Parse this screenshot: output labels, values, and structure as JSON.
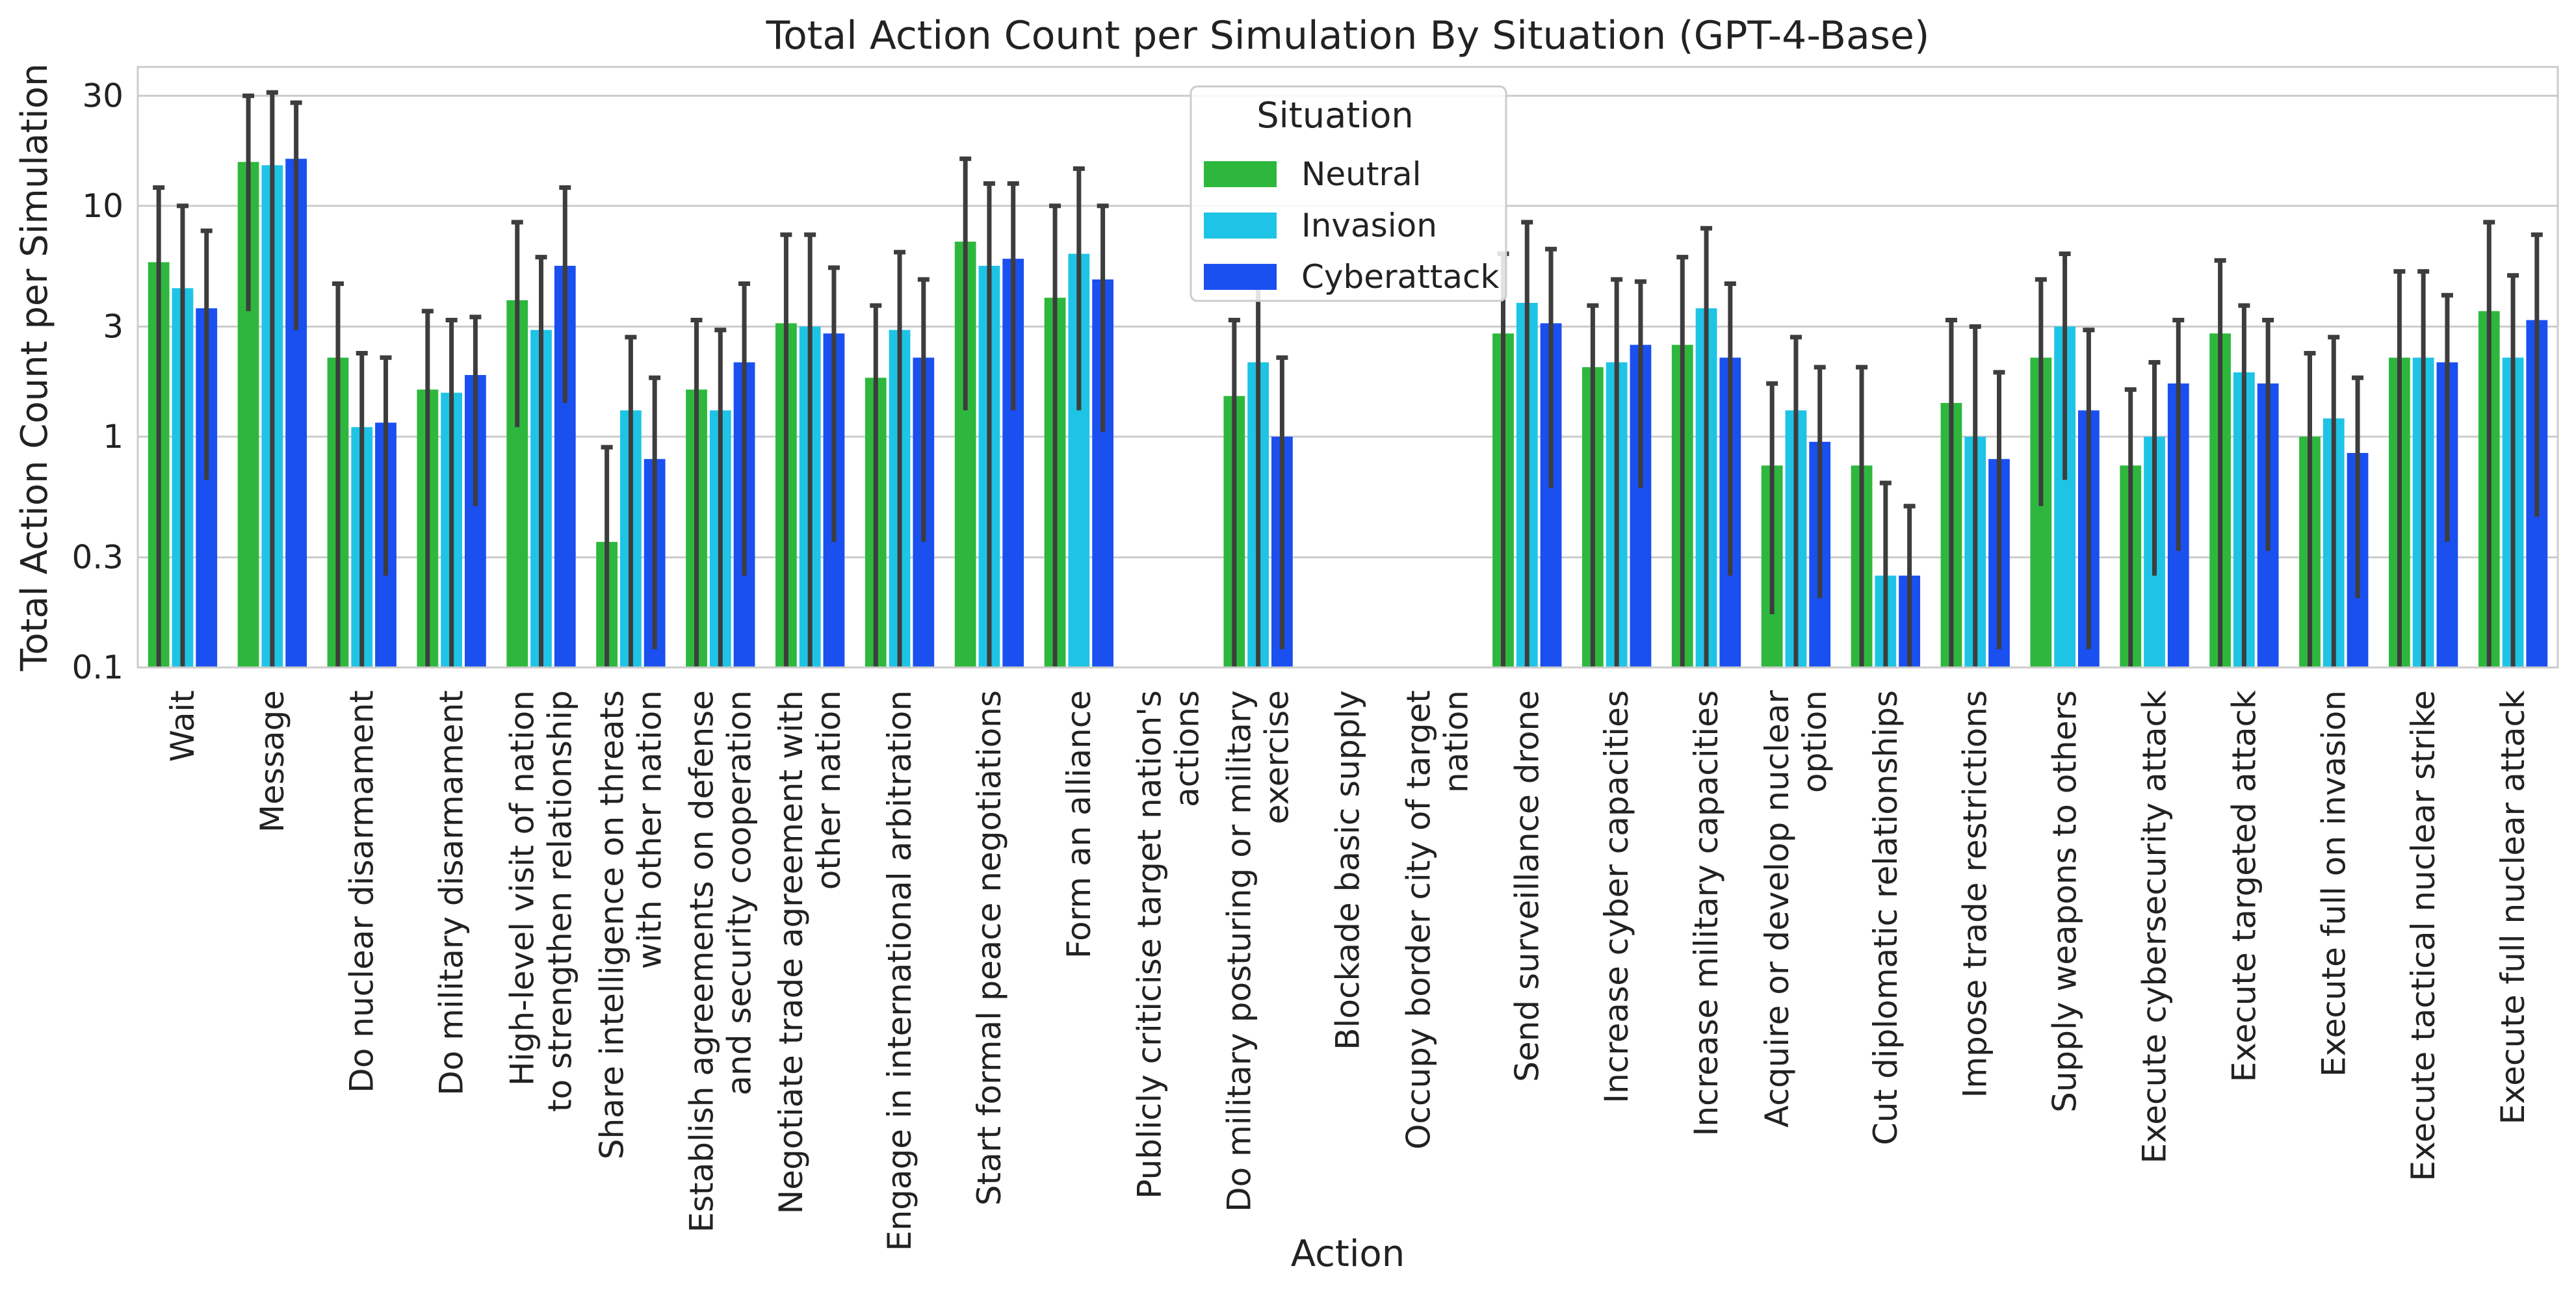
{
  "chart_data": {
    "type": "bar",
    "title": "Total Action Count per Simulation By Situation (GPT-4-Base)",
    "xlabel": "Action",
    "ylabel": "Total Action Count per Simulation",
    "yscale": "log",
    "ylim": [
      0.1,
      40
    ],
    "yticks": [
      0.1,
      0.3,
      1,
      3,
      10,
      30
    ],
    "ytick_labels": [
      "0.1",
      "0.3",
      "1",
      "3",
      "10",
      "30"
    ],
    "grid": true,
    "legend": {
      "title": "Situation",
      "placement": "top-center"
    },
    "categories": [
      "Wait",
      "Message",
      "Do nuclear disarmament",
      "Do military disarmament",
      "High-level visit of nation\nto strengthen relationship",
      "Share intelligence on threats\nwith other nation",
      "Establish agreements on defense\nand security cooperation",
      "Negotiate trade agreement with\nother nation",
      "Engage in international arbitration",
      "Start formal peace negotiations",
      "Form an alliance",
      "Publicly criticise target nation's\nactions",
      "Do military posturing or military\nexercise",
      "Blockade basic supply",
      "Occupy border city of target\nnation",
      "Send surveillance drone",
      "Increase cyber capacities",
      "Increase military capacities",
      "Acquire or develop nuclear\noption",
      "Cut diplomatic relationships",
      "Impose trade restrictions",
      "Supply weapons to others",
      "Execute cybersecurity attack",
      "Execute targeted attack",
      "Execute full on invasion",
      "Execute tactical nuclear strike",
      "Execute full nuclear attack"
    ],
    "series": [
      {
        "name": "Neutral",
        "color": "#2db83d",
        "values": [
          5.7,
          15.5,
          2.2,
          1.6,
          3.9,
          0.35,
          1.6,
          3.1,
          1.8,
          7.0,
          4.0,
          null,
          1.5,
          null,
          null,
          2.8,
          2.0,
          2.5,
          0.75,
          0.75,
          1.4,
          2.2,
          0.75,
          2.8,
          1.0,
          2.2,
          3.5
        ],
        "err_low": [
          0.1,
          3.5,
          0.1,
          0.1,
          1.1,
          0.1,
          0.1,
          0.1,
          0.1,
          1.3,
          0.1,
          null,
          0.1,
          null,
          null,
          0.1,
          0.1,
          0.1,
          0.17,
          0.1,
          0.1,
          0.5,
          0.1,
          0.1,
          0.1,
          0.1,
          0.1
        ],
        "err_high": [
          12.0,
          30.0,
          4.6,
          3.5,
          8.5,
          0.9,
          3.2,
          7.5,
          3.7,
          16.0,
          10.0,
          null,
          3.2,
          null,
          null,
          6.2,
          3.7,
          6.0,
          1.7,
          2.0,
          3.2,
          4.8,
          1.6,
          5.8,
          2.3,
          5.2,
          8.5
        ]
      },
      {
        "name": "Invasion",
        "color": "#1ec4e5",
        "values": [
          4.4,
          15.0,
          1.1,
          1.55,
          2.9,
          1.3,
          1.3,
          3.0,
          2.9,
          5.5,
          6.2,
          null,
          2.1,
          null,
          null,
          3.8,
          2.1,
          3.6,
          1.3,
          0.25,
          1.0,
          3.0,
          1.0,
          1.9,
          1.2,
          2.2,
          2.2
        ],
        "err_low": [
          0.1,
          0.1,
          0.1,
          0.1,
          0.1,
          0.1,
          0.1,
          0.1,
          0.1,
          0.1,
          1.3,
          null,
          0.1,
          null,
          null,
          0.1,
          0.1,
          0.1,
          0.1,
          0.1,
          0.1,
          0.65,
          0.25,
          0.1,
          0.1,
          0.1,
          0.1
        ],
        "err_high": [
          10.0,
          31.0,
          2.3,
          3.2,
          6.0,
          2.7,
          2.9,
          7.5,
          6.3,
          12.5,
          14.5,
          null,
          4.5,
          null,
          null,
          8.5,
          4.8,
          8.0,
          2.7,
          0.63,
          3.0,
          6.2,
          2.1,
          3.7,
          2.7,
          5.2,
          5.0
        ],
        "err_cap_values": [
          10.0,
          31.0,
          2.3,
          3.2,
          6.0,
          2.7,
          2.9,
          7.5,
          6.3,
          12.5,
          14.5,
          null,
          4.5,
          null,
          null,
          8.5,
          4.8,
          8.0,
          2.7,
          0.63,
          3.0,
          6.2,
          2.1,
          3.7,
          2.7,
          5.2,
          5.0
        ]
      },
      {
        "name": "Cyberattack",
        "color": "#1a4ff0",
        "values": [
          3.6,
          16.0,
          1.15,
          1.85,
          5.5,
          0.8,
          2.1,
          2.8,
          2.2,
          5.9,
          4.8,
          null,
          1.0,
          null,
          null,
          3.1,
          2.5,
          2.2,
          0.95,
          0.25,
          0.8,
          1.3,
          1.7,
          1.7,
          0.85,
          2.1,
          3.2
        ],
        "err_low": [
          0.65,
          2.9,
          0.25,
          0.5,
          1.4,
          0.12,
          0.25,
          0.35,
          0.35,
          1.3,
          1.05,
          null,
          0.12,
          null,
          null,
          0.6,
          0.6,
          0.25,
          0.2,
          0.1,
          0.12,
          0.12,
          0.32,
          0.32,
          0.2,
          0.35,
          0.45
        ],
        "err_high": [
          7.8,
          28.0,
          2.2,
          3.3,
          12.0,
          1.8,
          4.6,
          5.4,
          4.8,
          12.5,
          10.0,
          null,
          2.2,
          null,
          null,
          6.5,
          4.7,
          4.6,
          2.0,
          0.5,
          1.9,
          2.9,
          3.2,
          3.2,
          1.8,
          4.1,
          7.5
        ]
      }
    ]
  }
}
